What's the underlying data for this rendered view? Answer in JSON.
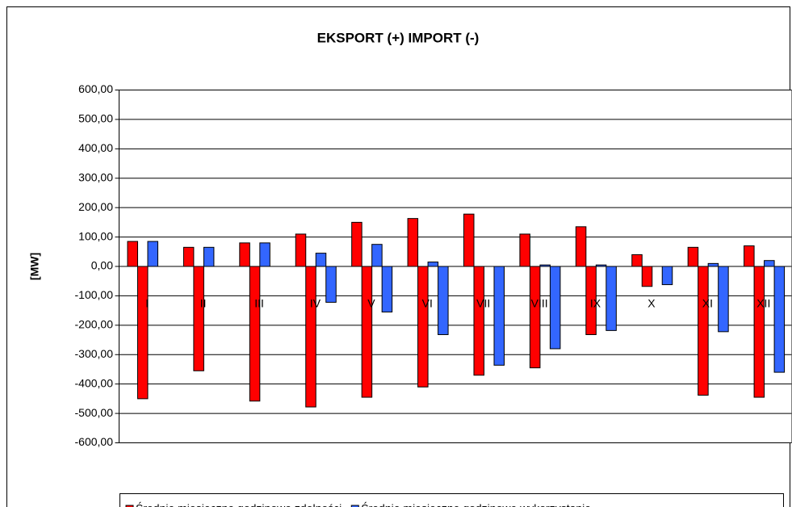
{
  "chart_data": {
    "type": "bar",
    "title": "EKSPORT (+) IMPORT (-)",
    "y_label": "[MW]",
    "categories": [
      "I",
      "II",
      "III",
      "IV",
      "V",
      "VI",
      "VII",
      "VIII",
      "IX",
      "X",
      "XI",
      "XII"
    ],
    "series": [
      {
        "name": "Średnie miesięczne godzinowe zdolności",
        "color": "#ff0000",
        "values": [
          85,
          65,
          80,
          110,
          150,
          163,
          178,
          110,
          135,
          40,
          65,
          70
        ],
        "import_values": [
          -450,
          -355,
          -458,
          -478,
          -445,
          -410,
          -370,
          -345,
          -232,
          -68,
          -438,
          -445
        ]
      },
      {
        "name": "Średnie miesięczne godzinowe wykorzystanie",
        "color": "#3366ff",
        "values": [
          85,
          65,
          80,
          45,
          75,
          15,
          0,
          5,
          5,
          0,
          10,
          20
        ],
        "import_values": [
          0,
          0,
          0,
          -122,
          -155,
          -232,
          -336,
          -280,
          -218,
          -62,
          -222,
          -360
        ]
      }
    ],
    "ylim": [
      -600,
      600
    ],
    "yticks": [
      {
        "value": -600,
        "label": "-600,00"
      },
      {
        "value": -500,
        "label": "-500,00"
      },
      {
        "value": -400,
        "label": "-400,00"
      },
      {
        "value": -300,
        "label": "-300,00"
      },
      {
        "value": -200,
        "label": "-200,00"
      },
      {
        "value": -100,
        "label": "-100,00"
      },
      {
        "value": 0,
        "label": "0,00"
      },
      {
        "value": 100,
        "label": "100,00"
      },
      {
        "value": 200,
        "label": "200,00"
      },
      {
        "value": 300,
        "label": "300,00"
      },
      {
        "value": 400,
        "label": "400,00"
      },
      {
        "value": 500,
        "label": "500,00"
      },
      {
        "value": 600,
        "label": "600,00"
      }
    ],
    "grid": true
  }
}
